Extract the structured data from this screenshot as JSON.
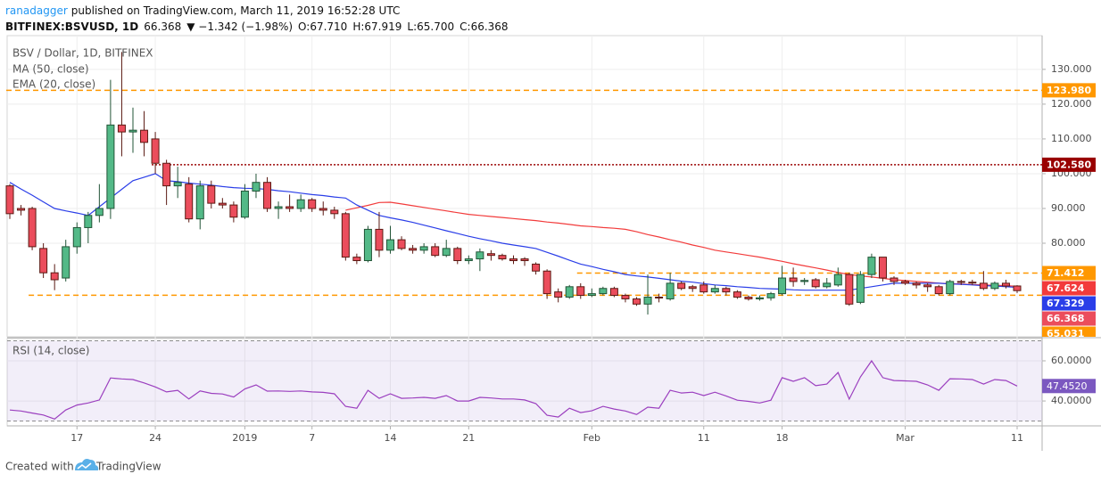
{
  "header": {
    "author": "ranadagger",
    "published": "published on TradingView.com, March 11, 2019 16:52:28 UTC",
    "symbol": "BITFINEX:BSVUSD, 1D",
    "last": "66.368",
    "change": "▼ −1.342 (−1.98%)",
    "ohlc": [
      {
        "key": "O:",
        "value": "67.710"
      },
      {
        "key": "H:",
        "value": "67.919"
      },
      {
        "key": "L:",
        "value": "65.700"
      },
      {
        "key": "C:",
        "value": "66.368"
      }
    ]
  },
  "chart_data": [
    {
      "type": "candlestick",
      "title": "BSV / Dollar, 1D, BITFINEX",
      "categories": [
        null,
        null,
        null,
        null,
        null,
        null,
        "17",
        null,
        null,
        null,
        null,
        null,
        null,
        "24",
        null,
        null,
        null,
        null,
        null,
        null,
        null,
        "2019",
        null,
        null,
        null,
        null,
        null,
        "7",
        null,
        null,
        null,
        null,
        null,
        null,
        "14",
        null,
        null,
        null,
        null,
        null,
        null,
        "21",
        null,
        null,
        null,
        null,
        null,
        null,
        null,
        null,
        null,
        null,
        "Feb",
        null,
        null,
        null,
        null,
        null,
        null,
        null,
        null,
        null,
        "11",
        null,
        null,
        null,
        null,
        null,
        null,
        "18",
        null,
        null,
        null,
        null,
        null,
        null,
        null,
        null,
        null,
        null,
        "Mar",
        null,
        null,
        null,
        null,
        null,
        null,
        null,
        null,
        null,
        "11"
      ],
      "open": [
        96.5,
        90,
        90,
        78.5,
        71.5,
        70,
        79,
        84.5,
        88,
        90,
        114,
        112,
        112.5,
        110,
        103,
        96.5,
        97,
        87,
        96.5,
        91.5,
        91,
        87.5,
        95,
        97.5,
        90,
        90.5,
        90,
        92.5,
        90,
        89.5,
        88.5,
        76,
        75,
        84,
        78,
        81,
        78.5,
        78,
        79,
        76.5,
        78.5,
        75,
        75.5,
        77,
        76.5,
        75.5,
        75.5,
        74,
        72,
        66,
        64.5,
        67.5,
        65,
        65.5,
        67,
        65,
        64,
        62.5,
        64.5,
        64,
        68.5,
        67.5,
        68,
        66,
        67,
        66,
        64.5,
        64,
        64.3,
        65.5,
        70,
        69,
        69.5,
        67.5,
        68,
        71,
        63,
        71,
        76,
        70,
        69,
        68.5,
        68,
        67.5,
        65.5,
        69,
        68.8,
        68.5,
        67,
        68.5,
        67.71
      ],
      "high": [
        97,
        91,
        90.5,
        80,
        74,
        81,
        86,
        89,
        97,
        127,
        135,
        119,
        118,
        112,
        104,
        102,
        99,
        98,
        98,
        93,
        92,
        97,
        100,
        99,
        92,
        94,
        94,
        93,
        92,
        90.5,
        89,
        77,
        85,
        89,
        85,
        82,
        79.5,
        80,
        80,
        81,
        79,
        76.5,
        78.5,
        78,
        77,
        76.5,
        76,
        74.5,
        72.5,
        67,
        68,
        68.5,
        67,
        67.5,
        67.5,
        65.5,
        64.5,
        71,
        65.5,
        71.5,
        69,
        68,
        69,
        68,
        67.5,
        66.5,
        65,
        65,
        66,
        73.5,
        73,
        70,
        70,
        70,
        73,
        71.5,
        72,
        77,
        76,
        70.5,
        69.5,
        69,
        68.5,
        68,
        69.5,
        69.5,
        69.5,
        72,
        69,
        69.5,
        67.919
      ],
      "low": [
        87,
        88,
        78,
        70,
        66.5,
        69,
        77,
        80,
        86,
        87,
        105,
        106,
        105,
        100,
        91,
        93,
        86,
        84,
        90,
        90,
        86,
        87,
        93,
        89,
        87,
        89,
        89,
        89,
        88,
        87,
        75,
        74,
        74.5,
        76,
        77,
        78,
        77,
        77,
        76,
        76,
        74,
        74,
        72,
        75,
        75,
        74,
        73.5,
        71,
        64,
        63,
        64,
        64,
        64.5,
        65,
        64.5,
        63,
        62,
        59.5,
        63,
        63.5,
        66.5,
        66,
        65.5,
        65.5,
        65,
        64,
        63.5,
        63.5,
        63.5,
        65,
        67.5,
        68,
        67,
        67,
        67.5,
        62,
        62.5,
        70,
        69,
        68,
        68,
        67,
        66,
        65,
        65,
        68,
        68,
        66.5,
        66.5,
        67,
        65.7
      ],
      "close": [
        88.5,
        89.5,
        79,
        71.5,
        69.5,
        79,
        84.5,
        88,
        90,
        114,
        112,
        112.5,
        109,
        103,
        96.5,
        97.5,
        87,
        96.5,
        91.5,
        91,
        87.5,
        95,
        97.5,
        90,
        90.5,
        90,
        92.5,
        90,
        89.5,
        88.5,
        76,
        75,
        84,
        78,
        81,
        78.5,
        78,
        79,
        76.5,
        78.5,
        75,
        75.5,
        77.5,
        76.5,
        75.5,
        75,
        75,
        72,
        65.5,
        64.5,
        67.5,
        65,
        65.5,
        67,
        65,
        64,
        62.5,
        64.5,
        64.3,
        68.5,
        67,
        67,
        66,
        67,
        66,
        64.5,
        64,
        64.3,
        65.5,
        70,
        69,
        69.3,
        67.5,
        68.5,
        71,
        62.5,
        71,
        76,
        70,
        69,
        68.5,
        68,
        67.5,
        65.5,
        69,
        68.8,
        68.6,
        67,
        68.5,
        67.7,
        66.368
      ],
      "up_color": "#53b987",
      "down_color": "#eb4d5c",
      "up_border": "#225437",
      "down_border": "#5b1a13",
      "series": [
        {
          "name": "MA (50, close)",
          "color": "#f23b3b",
          "values": [
            null,
            null,
            null,
            null,
            null,
            null,
            null,
            null,
            null,
            null,
            null,
            null,
            null,
            null,
            null,
            null,
            null,
            null,
            null,
            null,
            null,
            null,
            null,
            null,
            null,
            null,
            null,
            null,
            null,
            null,
            89.5,
            90.2,
            90.9,
            91.7,
            91.8,
            91.3,
            90.8,
            90.3,
            89.8,
            89.3,
            88.8,
            88.3,
            88,
            87.7,
            87.4,
            87.1,
            86.8,
            86.5,
            86.1,
            85.8,
            85.4,
            85,
            84.8,
            84.5,
            84.3,
            84,
            83.3,
            82.5,
            81.8,
            81,
            80.3,
            79.5,
            78.8,
            78,
            77.5,
            77,
            76.5,
            76,
            75.4,
            74.8,
            74.1,
            73.5,
            72.9,
            72.3,
            71.6,
            71,
            70.6,
            70.3,
            69.9,
            69.5,
            69.3,
            69,
            68.8,
            68.5,
            68.4,
            68.3,
            68.1,
            68,
            67.9,
            67.8,
            67.624
          ]
        },
        {
          "name": "EMA (20, close)",
          "color": "#2a3ee8",
          "values": [
            97.5,
            95.6,
            93.8,
            91.9,
            90,
            89.3,
            88.7,
            88,
            90.5,
            93,
            95.5,
            98,
            99,
            100,
            98,
            97.7,
            97.3,
            97,
            96.7,
            96.3,
            96,
            95.8,
            95.7,
            95.5,
            95.1,
            94.8,
            94.4,
            94,
            93.7,
            93.3,
            93,
            91,
            89.5,
            88,
            87.3,
            86.7,
            86,
            85.2,
            84.4,
            83.6,
            82.8,
            82,
            81.3,
            80.7,
            80,
            79.5,
            79,
            78.5,
            77.4,
            76.3,
            75.1,
            74,
            73.3,
            72.5,
            71.8,
            71,
            70.6,
            70.3,
            69.9,
            69.5,
            69.1,
            68.8,
            68.4,
            68,
            67.8,
            67.5,
            67.3,
            67,
            66.9,
            66.8,
            66.6,
            66.5,
            66.5,
            66.5,
            66.5,
            66.5,
            67,
            67.5,
            68,
            68.5,
            68.5,
            68.5,
            68.5,
            68.5,
            68.3,
            68.2,
            68,
            67.8,
            67.7,
            67.5,
            67.329
          ]
        }
      ],
      "levels": [
        {
          "value": 123.98,
          "label": "123.980",
          "color": "#ff9800",
          "style": "dashed",
          "start": 0
        },
        {
          "value": 102.58,
          "label": "102.580",
          "color": "#990000",
          "style": "dotted",
          "start": 13
        },
        {
          "value": 71.412,
          "label": "71.412",
          "color": "#ff9800",
          "style": "dashed",
          "start": 51
        },
        {
          "value": 65.031,
          "label": "65.031",
          "color": "#ff9800",
          "style": "dashed",
          "start": 2
        }
      ],
      "ylim": [
        53.1,
        139.7
      ],
      "yticks": [
        {
          "value": 130,
          "label": "130.000"
        },
        {
          "value": 120,
          "label": "120.000"
        },
        {
          "value": 110,
          "label": "110.000"
        },
        {
          "value": 100,
          "label": "100.000"
        },
        {
          "value": 90,
          "label": "90.000"
        },
        {
          "value": 80,
          "label": "80.000"
        }
      ],
      "grid": true
    },
    {
      "type": "line",
      "title": "RSI (14, close)",
      "color": "#9b3fbf",
      "label_color": "#7b58c0",
      "band": [
        30,
        70
      ],
      "band_color": "#9575cd",
      "values": [
        35.5,
        35,
        34,
        33,
        31,
        35.5,
        38,
        39,
        40.5,
        51.5,
        51,
        50.7,
        49,
        47,
        44.5,
        45.3,
        41,
        45,
        43.8,
        43.5,
        42,
        46,
        48,
        44.9,
        45,
        44.8,
        45,
        44.5,
        44.3,
        43.6,
        37.3,
        36.4,
        45.3,
        41.3,
        43.6,
        41.3,
        41.5,
        41.8,
        41.3,
        42.7,
        40,
        40,
        41.8,
        41.5,
        41,
        41,
        40.5,
        38.7,
        32.9,
        32,
        36.4,
        34.2,
        35.1,
        37.3,
        36,
        35,
        33.3,
        36.9,
        36.4,
        45.3,
        44,
        44.4,
        42.7,
        44.4,
        42.5,
        40.4,
        39.8,
        39,
        40.4,
        51.6,
        49.8,
        51.6,
        47.6,
        48.4,
        54.2,
        40.9,
        52,
        60,
        51.6,
        50.2,
        50,
        49.8,
        48,
        45.3,
        51.1,
        51,
        50.7,
        48.4,
        50.7,
        50.2,
        47.452
      ],
      "value_labels": [
        null,
        null,
        null,
        null,
        null,
        null,
        null,
        null,
        null,
        null,
        null,
        null,
        null,
        null,
        null,
        null,
        null,
        null,
        null,
        null,
        null,
        null,
        null,
        null,
        null,
        null,
        null,
        null,
        null,
        null,
        null,
        null,
        null,
        null,
        null,
        null,
        null,
        null,
        null,
        null,
        null,
        null,
        null,
        null,
        null,
        null,
        null,
        null,
        null,
        null,
        null,
        null,
        null,
        null,
        null,
        null,
        null,
        null,
        null,
        null,
        null,
        null,
        null,
        null,
        null,
        null,
        null,
        null,
        null,
        null,
        null,
        null,
        null,
        null,
        null,
        null,
        null,
        null,
        null,
        null,
        null,
        null,
        null,
        null,
        null,
        null,
        null,
        null,
        null,
        null,
        "47.4520"
      ],
      "ylim": [
        27.6,
        71.1
      ],
      "yticks": [
        {
          "value": 60,
          "label": "60.0000"
        },
        {
          "value": 40,
          "label": "40.0000"
        }
      ],
      "grid": true
    }
  ],
  "footer": {
    "created": "Created with",
    "brand": "TradingView"
  }
}
